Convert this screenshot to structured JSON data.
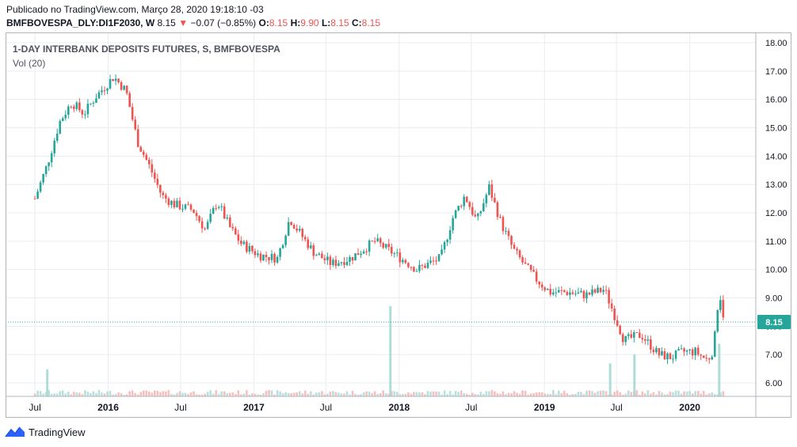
{
  "header": {
    "published": "Publicado no TradingView.com, Março 28, 2020 19:18:10 -03",
    "symbol": "BMFBOVESPA_DLY:DI1F2030, W",
    "last": "8.15",
    "change_arrow": "▼",
    "change": "−0.07 (−0.85%)",
    "o_label": "O:",
    "o": "8.15",
    "h_label": "H:",
    "h": "9.90",
    "l_label": "L:",
    "l": "8.15",
    "c_label": "C:",
    "c": "8.15"
  },
  "chart_title": "1-DAY INTERBANK DEPOSITS FUTURES, S, BMFBOVESPA",
  "volume_label": "Vol (20)",
  "footer": {
    "brand": "TradingView",
    "icon": "tradingview-logo-icon"
  },
  "colors": {
    "up": "#26a69a",
    "down": "#ef5350",
    "grid": "#e9ecf1",
    "price_line": "#26a69a"
  },
  "chart_data": {
    "type": "candlestick",
    "y_ticks": [
      "6.00",
      "7.00",
      "8.00",
      "9.00",
      "10.00",
      "11.00",
      "12.00",
      "13.00",
      "14.00",
      "15.00",
      "16.00",
      "17.00",
      "18.00"
    ],
    "x_ticks": [
      "Jul",
      "2016",
      "Jul",
      "2017",
      "Jul",
      "2018",
      "Jul",
      "2019",
      "Jul",
      "2020"
    ],
    "last_price_label": "8.15",
    "ylim": [
      5.55,
      18.2
    ],
    "grid": true,
    "approx_weekly_close_path": [
      {
        "date": "2015-07-01",
        "close": 12.5
      },
      {
        "date": "2015-08-01",
        "close": 13.7
      },
      {
        "date": "2015-09-01",
        "close": 15.2
      },
      {
        "date": "2015-10-01",
        "close": 15.9
      },
      {
        "date": "2015-11-01",
        "close": 15.5
      },
      {
        "date": "2015-12-01",
        "close": 16.1
      },
      {
        "date": "2016-01-15",
        "close": 16.8
      },
      {
        "date": "2016-02-15",
        "close": 16.3
      },
      {
        "date": "2016-03-15",
        "close": 14.5
      },
      {
        "date": "2016-04-15",
        "close": 13.6
      },
      {
        "date": "2016-05-15",
        "close": 12.6
      },
      {
        "date": "2016-06-15",
        "close": 12.3
      },
      {
        "date": "2016-08-01",
        "close": 12.1
      },
      {
        "date": "2016-09-01",
        "close": 11.4
      },
      {
        "date": "2016-10-01",
        "close": 12.4
      },
      {
        "date": "2016-11-01",
        "close": 11.5
      },
      {
        "date": "2016-12-01",
        "close": 10.9
      },
      {
        "date": "2017-01-15",
        "close": 10.5
      },
      {
        "date": "2017-03-01",
        "close": 10.4
      },
      {
        "date": "2017-04-01",
        "close": 11.8
      },
      {
        "date": "2017-05-01",
        "close": 11.2
      },
      {
        "date": "2017-06-01",
        "close": 10.6
      },
      {
        "date": "2017-07-15",
        "close": 10.2
      },
      {
        "date": "2017-09-01",
        "close": 10.4
      },
      {
        "date": "2017-11-01",
        "close": 11.0
      },
      {
        "date": "2017-12-15",
        "close": 10.6
      },
      {
        "date": "2018-01-15",
        "close": 10.3
      },
      {
        "date": "2018-02-15",
        "close": 10.0
      },
      {
        "date": "2018-03-15",
        "close": 10.2
      },
      {
        "date": "2018-04-15",
        "close": 10.4
      },
      {
        "date": "2018-05-15",
        "close": 11.8
      },
      {
        "date": "2018-06-15",
        "close": 12.6
      },
      {
        "date": "2018-07-15",
        "close": 11.7
      },
      {
        "date": "2018-08-15",
        "close": 12.9
      },
      {
        "date": "2018-09-15",
        "close": 11.6
      },
      {
        "date": "2018-10-15",
        "close": 10.7
      },
      {
        "date": "2018-11-15",
        "close": 10.1
      },
      {
        "date": "2018-12-15",
        "close": 9.6
      },
      {
        "date": "2019-01-15",
        "close": 9.2
      },
      {
        "date": "2019-03-01",
        "close": 9.2
      },
      {
        "date": "2019-04-15",
        "close": 9.1
      },
      {
        "date": "2019-06-01",
        "close": 9.3
      },
      {
        "date": "2019-07-01",
        "close": 8.2
      },
      {
        "date": "2019-07-20",
        "close": 7.5
      },
      {
        "date": "2019-09-01",
        "close": 7.7
      },
      {
        "date": "2019-10-15",
        "close": 7.0
      },
      {
        "date": "2019-11-15",
        "close": 6.9
      },
      {
        "date": "2019-12-15",
        "close": 7.1
      },
      {
        "date": "2020-01-15",
        "close": 7.1
      },
      {
        "date": "2020-02-15",
        "close": 6.8
      },
      {
        "date": "2020-03-01",
        "close": 7.2
      },
      {
        "date": "2020-03-15",
        "close": 9.3
      },
      {
        "date": "2020-03-28",
        "close": 8.15
      }
    ],
    "volume_spikes": [
      {
        "date": "2015-08-01",
        "value": 0.18
      },
      {
        "date": "2017-12-10",
        "value": 0.6
      },
      {
        "date": "2019-06-15",
        "value": 0.22
      },
      {
        "date": "2019-08-15",
        "value": 0.28
      },
      {
        "date": "2020-03-15",
        "value": 0.35
      }
    ]
  }
}
